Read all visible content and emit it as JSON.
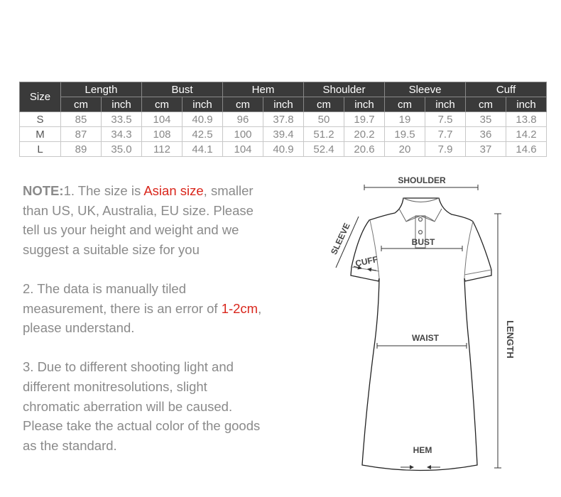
{
  "table": {
    "size_header": "Size",
    "groups": [
      "Length",
      "Bust",
      "Hem",
      "Shoulder",
      "Sleeve",
      "Cuff"
    ],
    "units": [
      "cm",
      "inch"
    ],
    "rows": [
      {
        "size": "S",
        "values": [
          "85",
          "33.5",
          "104",
          "40.9",
          "96",
          "37.8",
          "50",
          "19.7",
          "19",
          "7.5",
          "35",
          "13.8"
        ]
      },
      {
        "size": "M",
        "values": [
          "87",
          "34.3",
          "108",
          "42.5",
          "100",
          "39.4",
          "51.2",
          "20.2",
          "19.5",
          "7.7",
          "36",
          "14.2"
        ]
      },
      {
        "size": "L",
        "values": [
          "89",
          "35.0",
          "112",
          "44.1",
          "104",
          "40.9",
          "52.4",
          "20.6",
          "20",
          "7.9",
          "37",
          "14.6"
        ]
      }
    ]
  },
  "notes": {
    "note_label": "NOTE:",
    "n1_a": "1. The size is ",
    "n1_highlight": "Asian size",
    "n1_b": ", smaller than US, UK, Australia, EU size. Please tell us your height and weight and we suggest a suitable size for you",
    "n2_a": "2. The data is manually tiled measurement, there is an error of ",
    "n2_highlight": "1-2cm",
    "n2_b": ", please understand.",
    "n3": "3. Due to different shooting light and different monitresolutions, slight chromatic aberration will be caused. Please take the actual color of the goods as the standard."
  },
  "diagram": {
    "shoulder": "SHOULDER",
    "sleeve": "SLEEVE",
    "bust": "BUST",
    "cuff": "CUFF",
    "waist": "WAIST",
    "length": "LENGTH",
    "hem": "HEM"
  },
  "colors": {
    "header_bg": "#3a3a3a",
    "highlight": "#d9261c",
    "text": "#8a8a8a"
  }
}
